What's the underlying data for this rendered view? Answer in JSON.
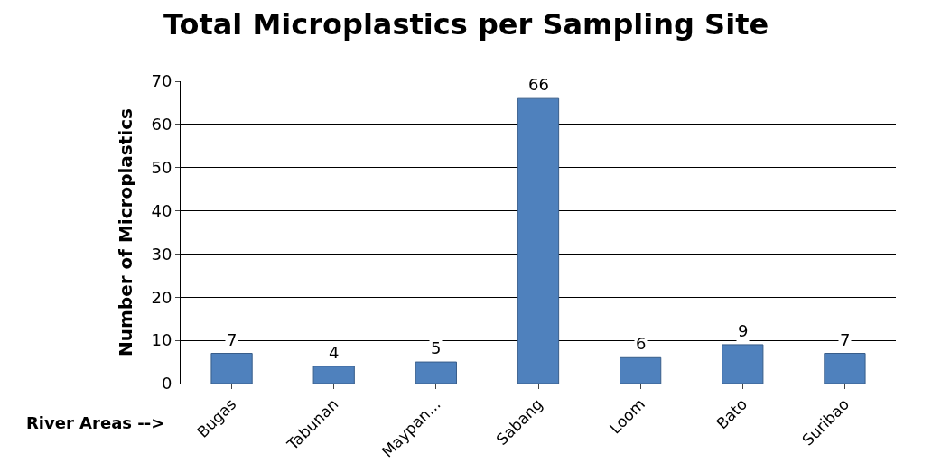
{
  "chart_data": {
    "type": "bar",
    "title": "Total Microplastics per Sampling Site",
    "xlabel": "River Areas -->",
    "ylabel": "Number of Microplastics",
    "categories": [
      "Bugas",
      "Tabunan",
      "Maypan...",
      "Sabang",
      "Loom",
      "Bato",
      "Suribao"
    ],
    "values": [
      7,
      4,
      5,
      66,
      6,
      9,
      7
    ],
    "color": "#4f81bd",
    "ylim": [
      0,
      70
    ],
    "yticks": [
      0,
      10,
      20,
      30,
      40,
      50,
      60,
      70
    ],
    "grid": "y",
    "data_labels": true
  }
}
